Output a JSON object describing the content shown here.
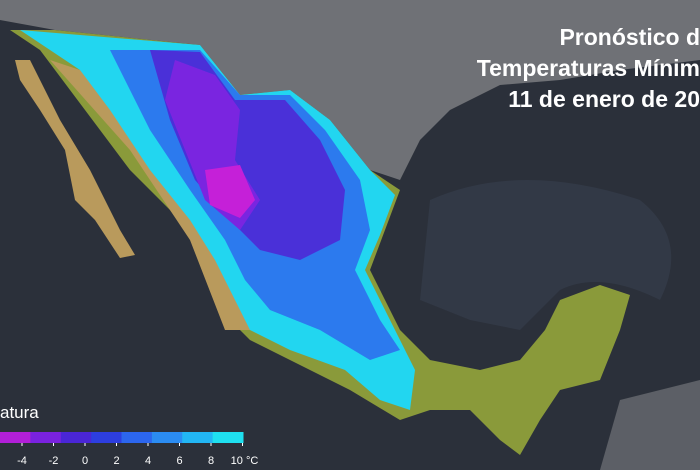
{
  "header": {
    "lines": [
      "Pronóstico d",
      "Temperaturas Mínim",
      "11 de enero de 20"
    ]
  },
  "legend": {
    "title": "atura",
    "ticks": [
      -4,
      -2,
      0,
      2,
      4,
      6,
      8,
      {
        "value": 10,
        "label": "10 °C"
      }
    ],
    "colors": [
      "#b21fd8",
      "#7a22e0",
      "#4a26d6",
      "#2d3ee0",
      "#2c66ee",
      "#2b8cf2",
      "#22b6f4",
      "#1fe0f0"
    ]
  }
}
